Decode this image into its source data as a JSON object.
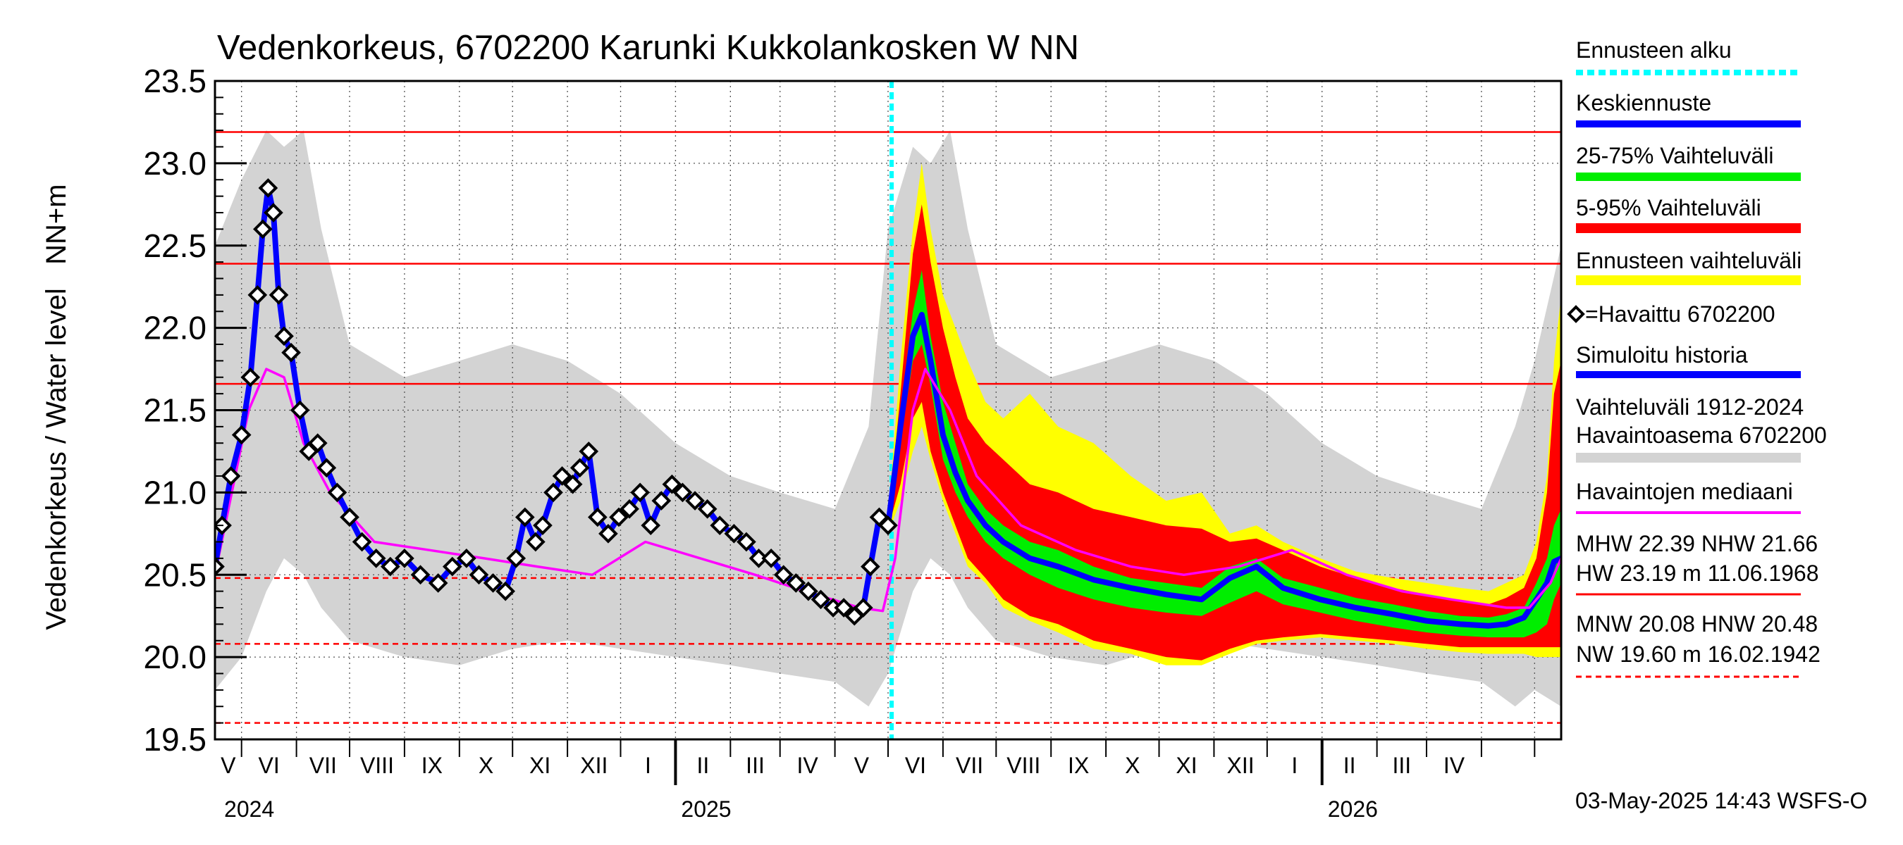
{
  "chart_data": {
    "type": "line",
    "title": "Vedenkorkeus, 6702200 Karunki Kukkolankosken W NN",
    "ylabel": "Vedenkorkeus / Water level   NN+m",
    "ylim": [
      19.5,
      23.5
    ],
    "yticks": [
      "19.5",
      "20.0",
      "20.5",
      "21.0",
      "21.5",
      "22.0",
      "22.5",
      "23.0",
      "23.5"
    ],
    "xlim": [
      "2024-04-16",
      "2026-05-16"
    ],
    "month_labels": [
      "V",
      "VI",
      "VII",
      "VIII",
      "IX",
      "X",
      "XI",
      "XII",
      "I",
      "II",
      "III",
      "IV",
      "V",
      "VI",
      "VII",
      "VIII",
      "IX",
      "X",
      "XI",
      "XII",
      "I",
      "II",
      "III",
      "IV"
    ],
    "year_labels": [
      "2024",
      "2025",
      "2026"
    ],
    "forecast_start": "2025-05-03",
    "reference_levels": {
      "HW": 23.19,
      "MHW": 22.39,
      "NHW": 21.66,
      "HNW": 20.48,
      "MNW": 20.08,
      "NW": 19.6
    },
    "historical_range": {
      "x": [
        "2024-04-16",
        "2024-05-01",
        "2024-05-15",
        "2024-05-25",
        "2024-06-05",
        "2024-06-15",
        "2024-07-01",
        "2024-08-01",
        "2024-09-01",
        "2024-10-01",
        "2024-11-01",
        "2024-12-01",
        "2025-01-01",
        "2025-02-01",
        "2025-03-01",
        "2025-04-01",
        "2025-04-20",
        "2025-05-01",
        "2025-05-15",
        "2025-05-25",
        "2025-06-05",
        "2025-06-15",
        "2025-07-01",
        "2025-08-01",
        "2025-09-01",
        "2025-10-01",
        "2025-11-01",
        "2025-12-01",
        "2026-01-01",
        "2026-02-01",
        "2026-03-01",
        "2026-04-01",
        "2026-04-20",
        "2026-05-01",
        "2026-05-16"
      ],
      "lower": [
        19.8,
        20.0,
        20.4,
        20.6,
        20.5,
        20.3,
        20.1,
        20.0,
        19.95,
        20.05,
        20.1,
        20.05,
        20.0,
        19.95,
        19.9,
        19.85,
        19.7,
        19.9,
        20.4,
        20.6,
        20.5,
        20.3,
        20.1,
        20.0,
        19.95,
        20.05,
        20.1,
        20.05,
        20.0,
        19.95,
        19.9,
        19.85,
        19.7,
        19.8,
        19.7
      ],
      "upper": [
        22.5,
        22.9,
        23.2,
        23.1,
        23.2,
        22.6,
        21.9,
        21.7,
        21.8,
        21.9,
        21.8,
        21.6,
        21.3,
        21.1,
        21.0,
        20.9,
        21.4,
        22.6,
        23.1,
        23.0,
        23.2,
        22.6,
        21.9,
        21.7,
        21.8,
        21.9,
        21.8,
        21.6,
        21.3,
        21.1,
        21.0,
        20.9,
        21.4,
        21.8,
        22.5
      ]
    },
    "median": {
      "x": [
        "2024-04-16",
        "2024-05-05",
        "2024-05-15",
        "2024-05-25",
        "2024-06-05",
        "2024-06-20",
        "2024-07-15",
        "2024-08-15",
        "2024-09-15",
        "2024-10-15",
        "2024-11-15",
        "2024-12-15",
        "2025-01-15",
        "2025-02-15",
        "2025-03-15",
        "2025-04-15",
        "2025-04-28",
        "2025-05-05",
        "2025-05-15",
        "2025-05-22",
        "2025-06-05",
        "2025-06-20",
        "2025-07-15",
        "2025-08-15",
        "2025-09-15",
        "2025-10-15",
        "2025-11-15",
        "2025-12-15",
        "2026-01-15",
        "2026-02-15",
        "2026-03-15",
        "2026-04-15",
        "2026-04-28",
        "2026-05-10",
        "2026-05-16"
      ],
      "values": [
        20.5,
        21.5,
        21.75,
        21.7,
        21.3,
        21.0,
        20.7,
        20.65,
        20.6,
        20.55,
        20.5,
        20.7,
        20.6,
        20.5,
        20.4,
        20.3,
        20.28,
        20.6,
        21.5,
        21.75,
        21.5,
        21.1,
        20.8,
        20.65,
        20.55,
        20.5,
        20.55,
        20.65,
        20.5,
        20.4,
        20.35,
        20.3,
        20.3,
        20.45,
        20.6
      ]
    },
    "observed": {
      "name": "Havaittu 6702200",
      "x": [
        "2024-04-16",
        "2024-04-20",
        "2024-04-25",
        "2024-05-01",
        "2024-05-06",
        "2024-05-10",
        "2024-05-13",
        "2024-05-16",
        "2024-05-19",
        "2024-05-22",
        "2024-05-25",
        "2024-05-29",
        "2024-06-03",
        "2024-06-08",
        "2024-06-13",
        "2024-06-18",
        "2024-06-24",
        "2024-07-01",
        "2024-07-08",
        "2024-07-16",
        "2024-07-24",
        "2024-08-01",
        "2024-08-10",
        "2024-08-20",
        "2024-08-28",
        "2024-09-05",
        "2024-09-12",
        "2024-09-20",
        "2024-09-27",
        "2024-10-03",
        "2024-10-08",
        "2024-10-14",
        "2024-10-18",
        "2024-10-24",
        "2024-10-29",
        "2024-11-04",
        "2024-11-08",
        "2024-11-13",
        "2024-11-18",
        "2024-11-24",
        "2024-11-30",
        "2024-12-06",
        "2024-12-12",
        "2024-12-18",
        "2024-12-24",
        "2024-12-30",
        "2025-01-05",
        "2025-01-12",
        "2025-01-19",
        "2025-01-26",
        "2025-02-03",
        "2025-02-10",
        "2025-02-17",
        "2025-02-24",
        "2025-03-03",
        "2025-03-10",
        "2025-03-17",
        "2025-03-24",
        "2025-03-31",
        "2025-04-06",
        "2025-04-12",
        "2025-04-17",
        "2025-04-21",
        "2025-04-26",
        "2025-05-01"
      ],
      "values": [
        20.55,
        20.8,
        21.1,
        21.35,
        21.7,
        22.2,
        22.6,
        22.85,
        22.7,
        22.2,
        21.95,
        21.85,
        21.5,
        21.25,
        21.3,
        21.15,
        21.0,
        20.85,
        20.7,
        20.6,
        20.55,
        20.6,
        20.5,
        20.45,
        20.55,
        20.6,
        20.5,
        20.45,
        20.4,
        20.6,
        20.85,
        20.7,
        20.8,
        21.0,
        21.1,
        21.05,
        21.15,
        21.25,
        20.85,
        20.75,
        20.85,
        20.9,
        21.0,
        20.8,
        20.95,
        21.05,
        21.0,
        20.95,
        20.9,
        20.8,
        20.75,
        20.7,
        20.6,
        20.6,
        20.5,
        20.45,
        20.4,
        20.35,
        20.3,
        20.3,
        20.25,
        20.3,
        20.55,
        20.85,
        20.8
      ]
    },
    "forecast": {
      "x": [
        "2025-05-01",
        "2025-05-08",
        "2025-05-15",
        "2025-05-20",
        "2025-05-25",
        "2025-06-01",
        "2025-06-08",
        "2025-06-15",
        "2025-06-25",
        "2025-07-05",
        "2025-07-20",
        "2025-08-05",
        "2025-08-25",
        "2025-09-15",
        "2025-10-05",
        "2025-10-25",
        "2025-11-10",
        "2025-11-25",
        "2025-12-10",
        "2025-12-31",
        "2026-01-20",
        "2026-02-10",
        "2026-03-01",
        "2026-03-20",
        "2026-04-05",
        "2026-04-15",
        "2026-04-25",
        "2026-05-02",
        "2026-05-08",
        "2026-05-12",
        "2026-05-16"
      ],
      "ens_min": [
        20.75,
        20.95,
        21.25,
        21.4,
        21.2,
        20.95,
        20.75,
        20.55,
        20.45,
        20.3,
        20.22,
        20.15,
        20.05,
        20.02,
        19.95,
        19.95,
        20.02,
        20.08,
        20.1,
        20.12,
        20.1,
        20.08,
        20.05,
        20.03,
        20.02,
        20.02,
        20.02,
        20.0,
        20.0,
        20.0,
        20.0
      ],
      "ens_max": [
        20.85,
        21.8,
        22.6,
        23.0,
        22.6,
        22.2,
        22.0,
        21.8,
        21.55,
        21.45,
        21.6,
        21.4,
        21.3,
        21.1,
        20.95,
        21.0,
        20.75,
        20.8,
        20.7,
        20.6,
        20.52,
        20.48,
        20.45,
        20.42,
        20.4,
        20.45,
        20.5,
        20.7,
        21.1,
        21.8,
        22.2
      ],
      "p5": [
        20.78,
        21.05,
        21.45,
        21.55,
        21.25,
        21.0,
        20.8,
        20.6,
        20.48,
        20.35,
        20.25,
        20.2,
        20.1,
        20.05,
        20.0,
        19.98,
        20.05,
        20.1,
        20.12,
        20.14,
        20.12,
        20.1,
        20.08,
        20.06,
        20.06,
        20.06,
        20.06,
        20.06,
        20.06,
        20.06,
        20.06
      ],
      "p95": [
        20.82,
        21.6,
        22.45,
        22.75,
        22.4,
        22.0,
        21.7,
        21.45,
        21.3,
        21.2,
        21.05,
        21.0,
        20.9,
        20.85,
        20.8,
        20.78,
        20.7,
        20.72,
        20.65,
        20.55,
        20.48,
        20.42,
        20.38,
        20.34,
        20.32,
        20.36,
        20.42,
        20.6,
        21.0,
        21.6,
        21.8
      ],
      "p25": [
        20.8,
        21.3,
        21.8,
        21.9,
        21.65,
        21.2,
        21.0,
        20.85,
        20.7,
        20.6,
        20.5,
        20.42,
        20.35,
        20.3,
        20.27,
        20.25,
        20.33,
        20.4,
        20.32,
        20.27,
        20.22,
        20.18,
        20.15,
        20.13,
        20.12,
        20.12,
        20.12,
        20.15,
        20.2,
        20.35,
        20.45
      ],
      "p75": [
        20.82,
        21.5,
        22.1,
        22.35,
        21.95,
        21.55,
        21.3,
        21.05,
        20.9,
        20.8,
        20.7,
        20.65,
        20.55,
        20.48,
        20.45,
        20.42,
        20.55,
        20.6,
        20.48,
        20.42,
        20.36,
        20.32,
        20.28,
        20.25,
        20.24,
        20.26,
        20.3,
        20.45,
        20.6,
        20.8,
        20.9
      ],
      "mean": [
        20.8,
        21.4,
        21.95,
        22.08,
        21.8,
        21.35,
        21.12,
        20.95,
        20.8,
        20.7,
        20.6,
        20.55,
        20.47,
        20.42,
        20.38,
        20.35,
        20.48,
        20.55,
        20.42,
        20.35,
        20.3,
        20.26,
        20.22,
        20.2,
        20.19,
        20.2,
        20.24,
        20.35,
        20.45,
        20.58,
        20.6
      ]
    },
    "legend": {
      "forecast_start": "Ennusteen alku",
      "mean": "Keskiennuste",
      "p25_75": "25-75% Vaihteluväli",
      "p5_95": "5-95% Vaihteluväli",
      "ensemble": "Ennusteen vaihteluväli",
      "observed": "=Havaittu 6702200",
      "simulated": "Simuloitu historia",
      "hist_range_1": "Vaihteluväli 1912-2024",
      "hist_range_2": " Havaintoasema 6702200",
      "median": "Havaintojen mediaani",
      "stats_1": "MHW  22.39 NHW  21.66",
      "stats_2": "HW  23.19 m 11.06.1968",
      "stats_3": "MNW  20.08 HNW  20.48",
      "stats_4": "NW  19.60 m 16.02.1942"
    },
    "footer": "03-May-2025 14:43 WSFS-O",
    "colors": {
      "mean": "#0000ff",
      "p25_75": "#00ee00",
      "p5_95": "#ff0000",
      "ensemble": "#ffff00",
      "hist_range": "#d3d3d3",
      "median": "#ff00ff",
      "forecast_start": "#00ffff",
      "reference": "#ff0000",
      "observed": "#000000"
    }
  }
}
